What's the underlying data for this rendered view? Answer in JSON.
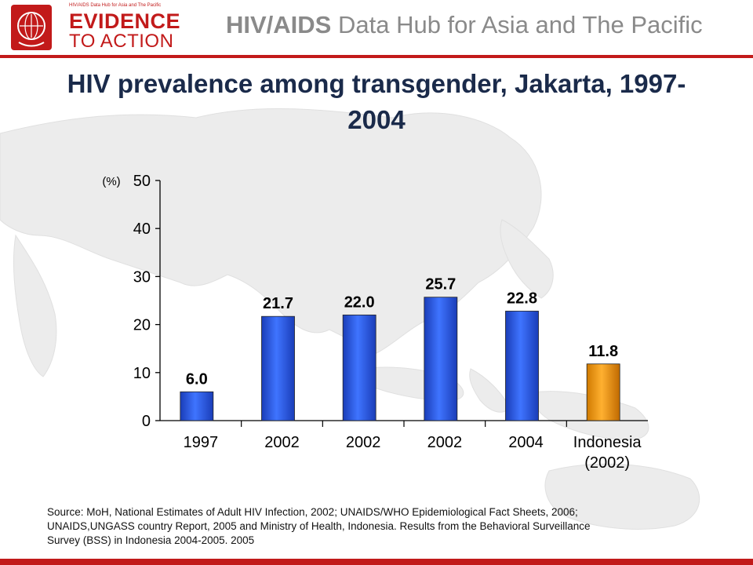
{
  "header": {
    "logo_small_text": "HIV/AIDS Data Hub for Asia and The Pacific",
    "logo_line1": "EVIDENCE",
    "logo_line2": "TO ACTION",
    "title_bold": "HIV/AIDS",
    "title_rest": " Data Hub for Asia and The Pacific"
  },
  "colors": {
    "brand_red": "#c21a1a",
    "bar_blue": "#2f5fe6",
    "bar_orange": "#f0a020"
  },
  "chart_data": {
    "type": "bar",
    "title": "HIV prevalence among transgender, Jakarta, 1997-2004",
    "ylabel": "(%)",
    "ylim": [
      0,
      50
    ],
    "yticks": [
      0,
      10,
      20,
      30,
      40,
      50
    ],
    "categories": [
      "1997",
      "2002",
      "2002",
      "2002",
      "2004",
      "Indonesia (2002)"
    ],
    "values": [
      6.0,
      21.7,
      22.0,
      25.7,
      22.8,
      11.8
    ],
    "value_labels": [
      "6.0",
      "21.7",
      "22.0",
      "25.7",
      "22.8",
      "11.8"
    ],
    "bar_colors": [
      "blue",
      "blue",
      "blue",
      "blue",
      "blue",
      "orange"
    ],
    "grid": false,
    "legend": "none"
  },
  "source": {
    "line1": "Source: MoH, National Estimates of Adult HIV Infection, 2002; UNAIDS/WHO Epidemiological Fact Sheets, 2006;",
    "line2": " UNAIDS,UNGASS country Report, 2005 and Ministry of Health, Indonesia. Results from the Behavioral Surveillance",
    "line3": "Survey (BSS) in Indonesia 2004-2005. 2005"
  }
}
